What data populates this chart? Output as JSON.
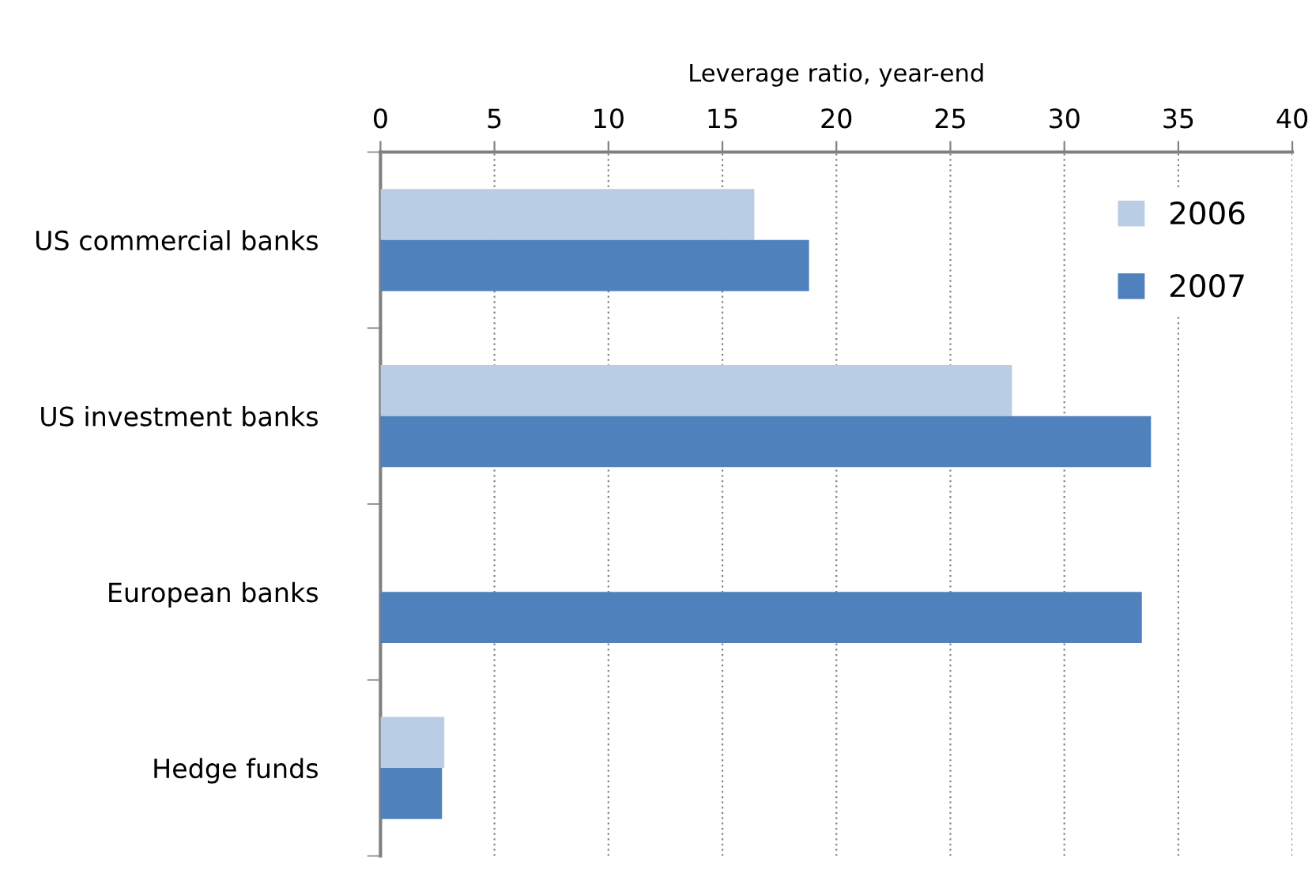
{
  "chart_data": {
    "type": "bar",
    "orientation": "horizontal",
    "xlabel": "Leverage ratio, year-end",
    "categories": [
      "US commercial banks",
      "US investment banks",
      "European banks",
      "Hedge funds"
    ],
    "series": [
      {
        "name": "2006",
        "color": "#b9cde5",
        "values": [
          16.4,
          27.7,
          null,
          2.8
        ]
      },
      {
        "name": "2007",
        "color": "#4f81bd",
        "values": [
          18.8,
          33.8,
          33.4,
          2.7
        ]
      }
    ],
    "xlim": [
      0,
      40
    ],
    "xticks": [
      0,
      5,
      10,
      15,
      20,
      25,
      30,
      35,
      40
    ],
    "grid": "x",
    "legend": "top right"
  }
}
